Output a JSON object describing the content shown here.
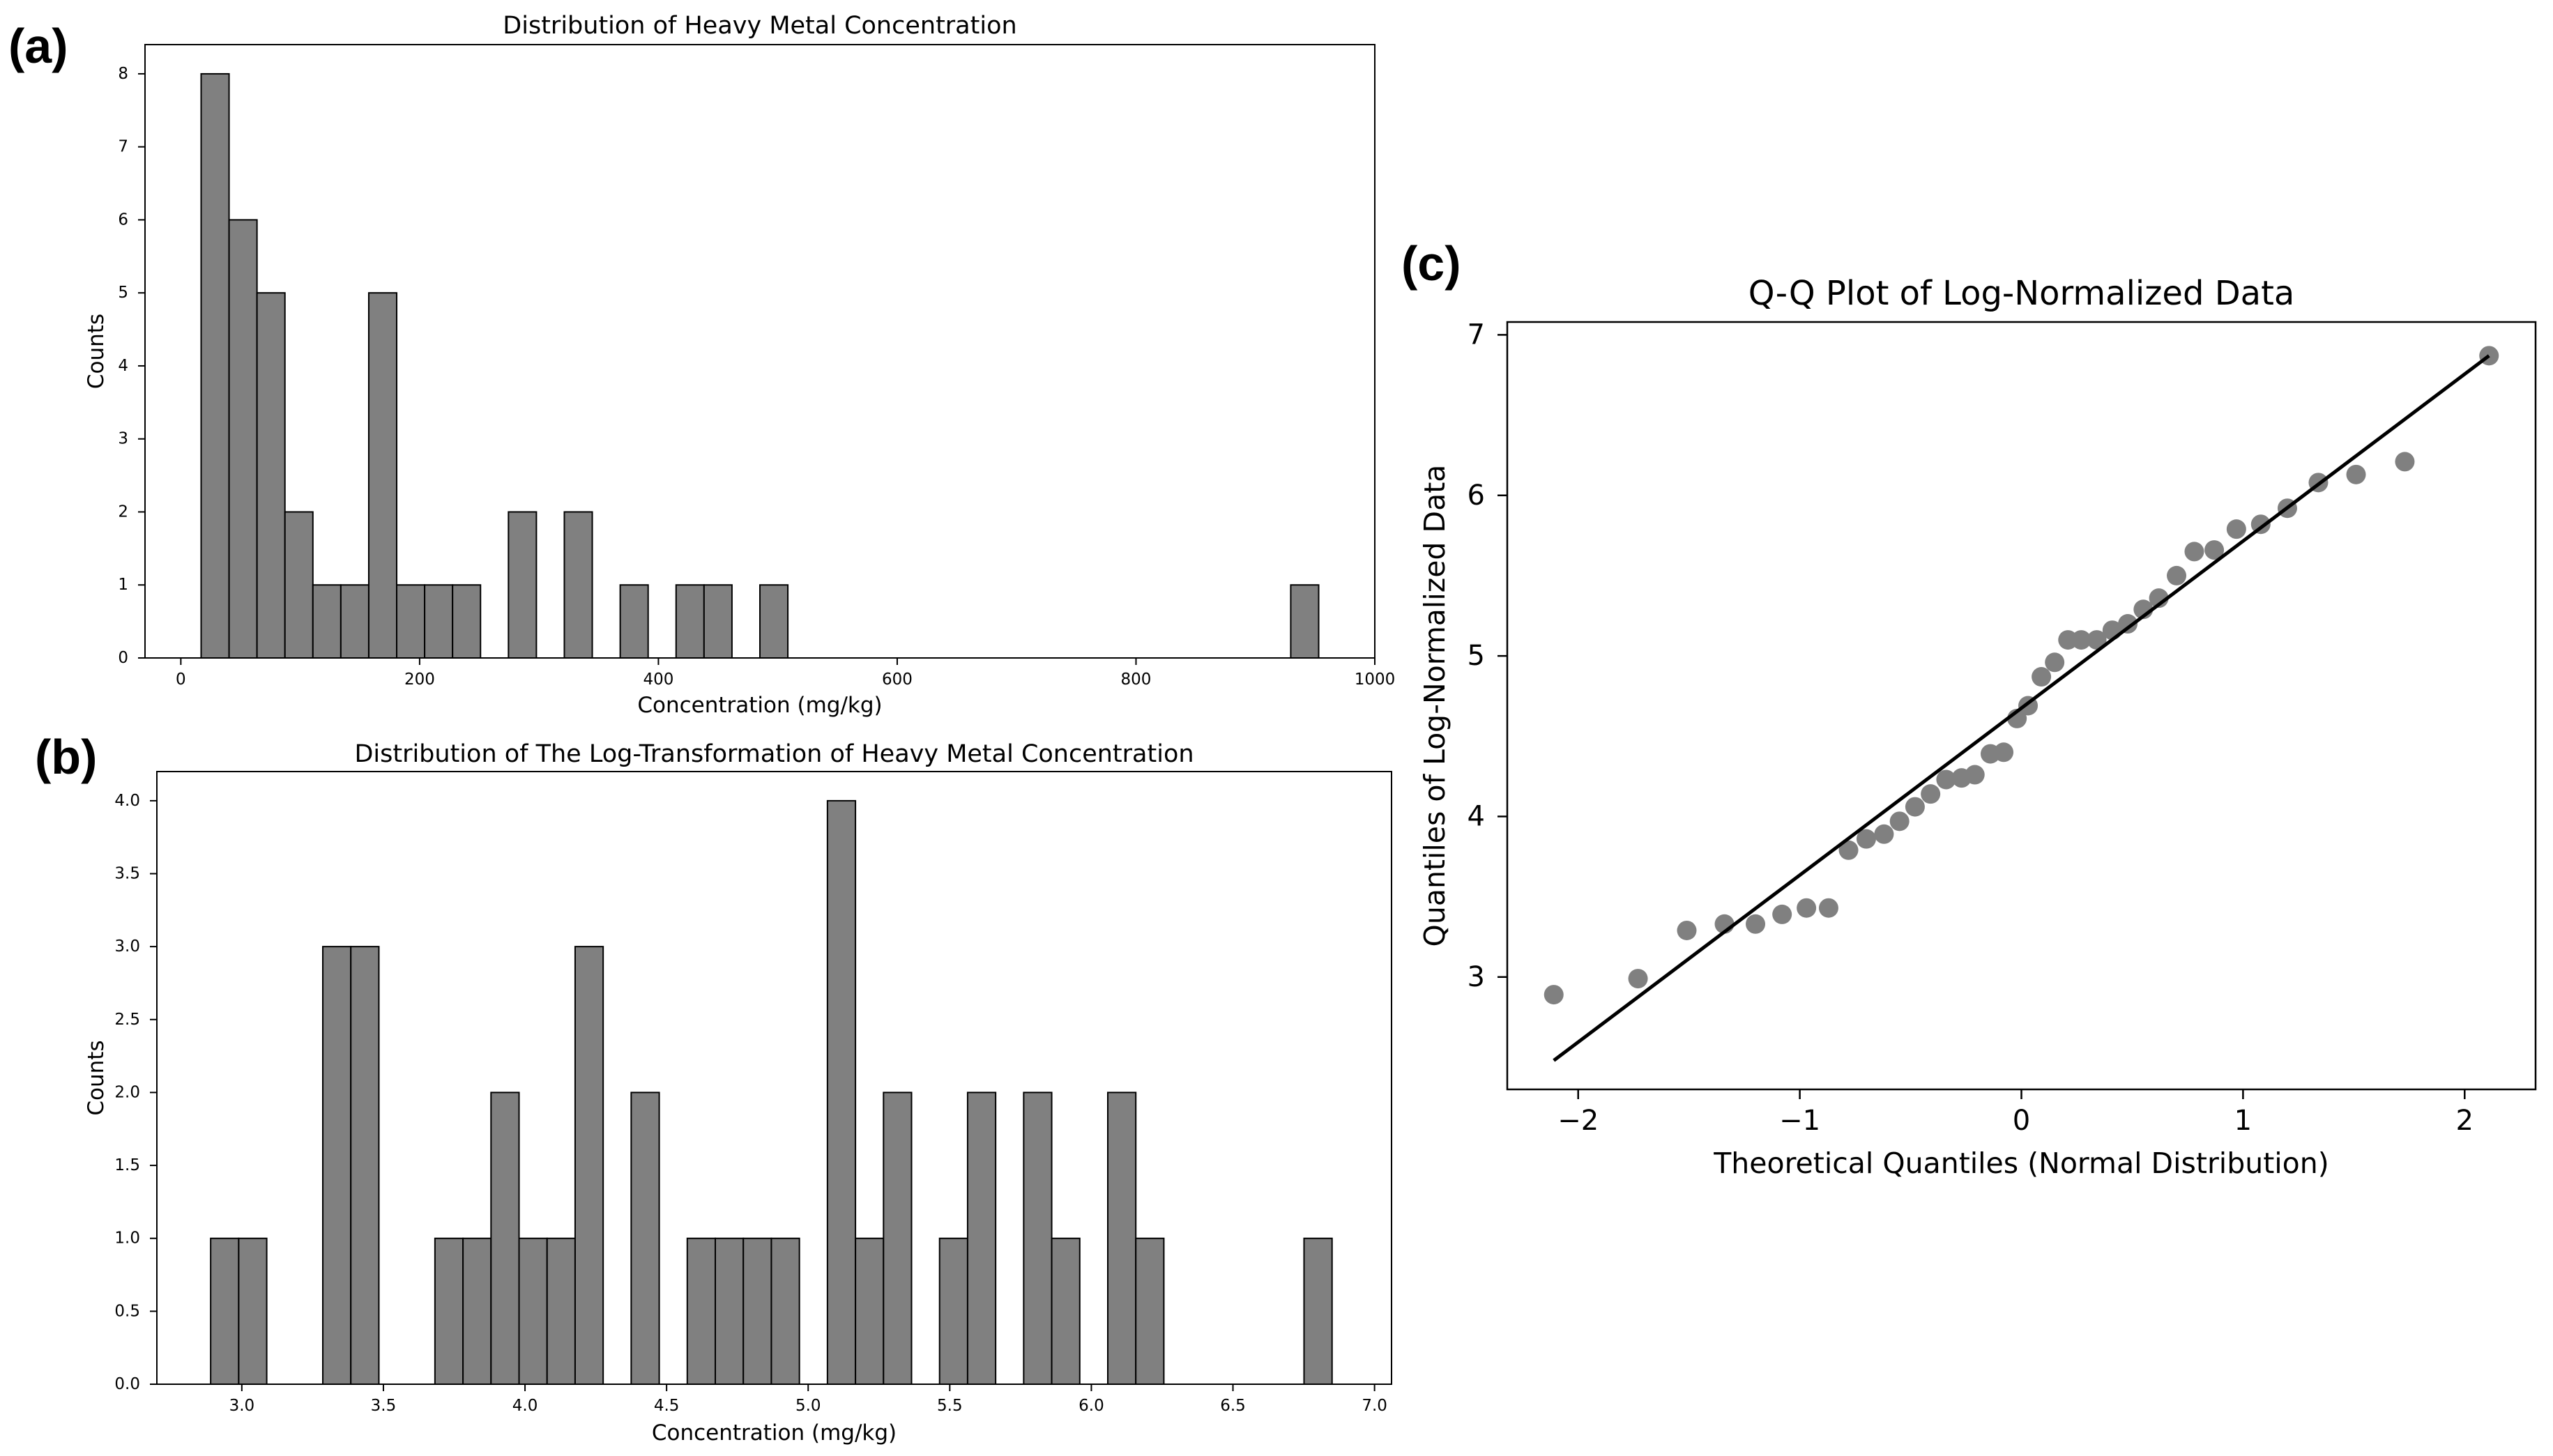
{
  "panels": {
    "a": "(a)",
    "b": "(b)",
    "c": "(c)"
  },
  "colors": {
    "bar_fill": "#808080",
    "bar_edge": "#000000",
    "point": "#808080",
    "line": "#000000"
  },
  "chart_data": [
    {
      "id": "a",
      "type": "bar",
      "title": "Distribution of Heavy Metal Concentration",
      "xlabel": "Concentration (mg/kg)",
      "ylabel": "Counts",
      "xlim": [
        -30,
        1000
      ],
      "ylim": [
        0,
        8.4
      ],
      "xticks": [
        0,
        200,
        400,
        600,
        800,
        1000
      ],
      "xtick_labels": [
        "0",
        "200",
        "400",
        "600",
        "800",
        "1000"
      ],
      "yticks": [
        0,
        1,
        2,
        3,
        4,
        5,
        6,
        7,
        8
      ],
      "ytick_labels": [
        "0",
        "1",
        "2",
        "3",
        "4",
        "5",
        "6",
        "7",
        "8"
      ],
      "bin_start": 17,
      "bin_width": 23.4,
      "counts": [
        8,
        6,
        5,
        2,
        1,
        1,
        5,
        1,
        1,
        1,
        0,
        2,
        0,
        2,
        0,
        1,
        0,
        1,
        1,
        0,
        1,
        0,
        0,
        0,
        0,
        0,
        0,
        0,
        0,
        0,
        0,
        0,
        0,
        0,
        0,
        0,
        0,
        0,
        0,
        1
      ]
    },
    {
      "id": "b",
      "type": "bar",
      "title": "Distribution of The Log-Transformation of Heavy Metal Concentration",
      "xlabel": "Concentration (mg/kg)",
      "ylabel": "Counts",
      "xlim": [
        2.7,
        7.06
      ],
      "ylim": [
        0,
        4.2
      ],
      "xticks": [
        3.0,
        3.5,
        4.0,
        4.5,
        5.0,
        5.5,
        6.0,
        6.5,
        7.0
      ],
      "xtick_labels": [
        "3.0",
        "3.5",
        "4.0",
        "4.5",
        "5.0",
        "5.5",
        "6.0",
        "6.5",
        "7.0"
      ],
      "yticks": [
        0,
        0.5,
        1,
        1.5,
        2,
        2.5,
        3,
        3.5,
        4
      ],
      "ytick_labels": [
        "0.0",
        "0.5",
        "1.0",
        "1.5",
        "2.0",
        "2.5",
        "3.0",
        "3.5",
        "4.0"
      ],
      "bin_start": 2.89,
      "bin_width": 0.099,
      "counts": [
        1,
        1,
        0,
        0,
        3,
        3,
        0,
        0,
        1,
        1,
        2,
        1,
        1,
        3,
        0,
        2,
        0,
        1,
        1,
        1,
        1,
        0,
        4,
        1,
        2,
        0,
        1,
        2,
        0,
        2,
        1,
        0,
        2,
        1,
        0,
        0,
        0,
        0,
        0,
        1
      ]
    },
    {
      "id": "c",
      "type": "scatter",
      "title": "Q-Q Plot of Log-Normalized Data",
      "xlabel": "Theoretical Quantiles (Normal Distribution)",
      "ylabel": "Quantiles of Log-Normalized Data",
      "xlim": [
        -2.32,
        2.32
      ],
      "ylim": [
        2.3,
        7.08
      ],
      "xticks": [
        -2,
        -1,
        0,
        1,
        2
      ],
      "xtick_labels": [
        "−2",
        "−1",
        "0",
        "1",
        "2"
      ],
      "yticks": [
        3,
        4,
        5,
        6,
        7
      ],
      "ytick_labels": [
        "3",
        "4",
        "5",
        "6",
        "7"
      ],
      "points": [
        [
          -2.11,
          2.89
        ],
        [
          -1.73,
          2.99
        ],
        [
          -1.51,
          3.29
        ],
        [
          -1.34,
          3.33
        ],
        [
          -1.2,
          3.33
        ],
        [
          -1.08,
          3.39
        ],
        [
          -0.97,
          3.43
        ],
        [
          -0.87,
          3.43
        ],
        [
          -0.78,
          3.79
        ],
        [
          -0.7,
          3.86
        ],
        [
          -0.62,
          3.89
        ],
        [
          -0.55,
          3.97
        ],
        [
          -0.48,
          4.06
        ],
        [
          -0.41,
          4.14
        ],
        [
          -0.34,
          4.23
        ],
        [
          -0.27,
          4.24
        ],
        [
          -0.21,
          4.26
        ],
        [
          -0.14,
          4.39
        ],
        [
          -0.08,
          4.4
        ],
        [
          -0.02,
          4.61
        ],
        [
          0.03,
          4.69
        ],
        [
          0.09,
          4.87
        ],
        [
          0.15,
          4.96
        ],
        [
          0.21,
          5.1
        ],
        [
          0.27,
          5.1
        ],
        [
          0.34,
          5.1
        ],
        [
          0.41,
          5.16
        ],
        [
          0.48,
          5.2
        ],
        [
          0.55,
          5.29
        ],
        [
          0.62,
          5.36
        ],
        [
          0.7,
          5.5
        ],
        [
          0.78,
          5.65
        ],
        [
          0.87,
          5.66
        ],
        [
          0.97,
          5.79
        ],
        [
          1.08,
          5.82
        ],
        [
          1.2,
          5.92
        ],
        [
          1.34,
          6.08
        ],
        [
          1.51,
          6.13
        ],
        [
          1.73,
          6.21
        ],
        [
          2.11,
          6.87
        ]
      ],
      "fit_line": {
        "x": [
          -2.11,
          2.11
        ],
        "y": [
          2.48,
          6.87
        ]
      }
    }
  ]
}
